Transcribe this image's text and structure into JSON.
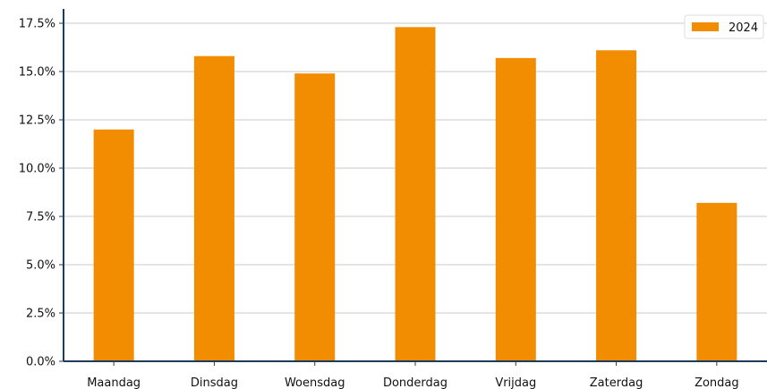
{
  "chart_data": {
    "type": "bar",
    "categories": [
      "Maandag",
      "Dinsdag",
      "Woensdag",
      "Donderdag",
      "Vrijdag",
      "Zaterdag",
      "Zondag"
    ],
    "series": [
      {
        "name": "2024",
        "values": [
          12.0,
          15.8,
          14.9,
          17.3,
          15.7,
          16.1,
          8.2
        ],
        "color": "#f28c00"
      }
    ],
    "ylim": [
      0,
      17.5
    ],
    "yticks": [
      0,
      2.5,
      5,
      7.5,
      10,
      12.5,
      15,
      17.5
    ],
    "ytick_labels": [
      "0.0%",
      "2.5%",
      "5.0%",
      "7.5%",
      "10.0%",
      "12.5%",
      "15.0%",
      "17.5%"
    ],
    "grid": true,
    "legend_position": "top-right",
    "axis_color": "#1f3a5a",
    "grid_color": "#c8c8c8",
    "title": "",
    "xlabel": "",
    "ylabel": ""
  }
}
